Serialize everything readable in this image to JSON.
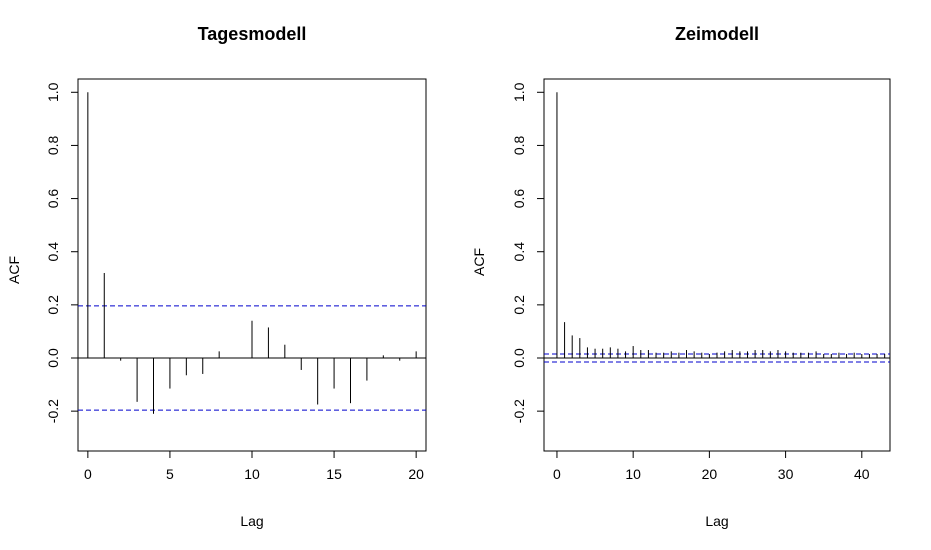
{
  "chart_data": [
    {
      "type": "bar",
      "title": "Tagesmodell",
      "xlabel": "Lag",
      "ylabel": "ACF",
      "xlim": [
        -0.6,
        20.6
      ],
      "ylim": [
        -0.35,
        1.05
      ],
      "xticks": [
        0,
        5,
        10,
        15,
        20
      ],
      "xtick_labels": [
        "0",
        "5",
        "10",
        "15",
        "20"
      ],
      "yticks": [
        -0.2,
        0.0,
        0.2,
        0.4,
        0.6,
        0.8,
        1.0
      ],
      "ytick_labels": [
        "-0.2",
        "0.0",
        "0.2",
        "0.4",
        "0.6",
        "0.8",
        "1.0"
      ],
      "confidence_band": 0.196,
      "ci_color": "#0000cc",
      "lags": [
        0,
        1,
        2,
        3,
        4,
        5,
        6,
        7,
        8,
        9,
        10,
        11,
        12,
        13,
        14,
        15,
        16,
        17,
        18,
        19,
        20
      ],
      "values": [
        1.0,
        0.32,
        -0.01,
        -0.165,
        -0.21,
        -0.115,
        -0.065,
        -0.06,
        0.025,
        0.0,
        0.14,
        0.115,
        0.05,
        -0.045,
        -0.175,
        -0.115,
        -0.17,
        -0.085,
        0.01,
        -0.01,
        0.025
      ]
    },
    {
      "type": "bar",
      "title": "Zeimodell",
      "xlabel": "Lag",
      "ylabel": "ACF",
      "xlim": [
        -1.7,
        43.7
      ],
      "ylim": [
        -0.35,
        1.05
      ],
      "xticks": [
        0,
        10,
        20,
        30,
        40
      ],
      "xtick_labels": [
        "0",
        "10",
        "20",
        "30",
        "40"
      ],
      "yticks": [
        -0.2,
        0.0,
        0.2,
        0.4,
        0.6,
        0.8,
        1.0
      ],
      "ytick_labels": [
        "-0.2",
        "0.0",
        "0.2",
        "0.4",
        "0.6",
        "0.8",
        "1.0"
      ],
      "confidence_band": 0.015,
      "ci_color": "#0000cc",
      "lags": [
        0,
        1,
        2,
        3,
        4,
        5,
        6,
        7,
        8,
        9,
        10,
        11,
        12,
        13,
        14,
        15,
        16,
        17,
        18,
        19,
        20,
        21,
        22,
        23,
        24,
        25,
        26,
        27,
        28,
        29,
        30,
        31,
        32,
        33,
        34,
        35,
        36,
        37,
        38,
        39,
        40,
        41,
        42,
        43
      ],
      "values": [
        1.0,
        0.135,
        0.085,
        0.075,
        0.04,
        0.035,
        0.035,
        0.04,
        0.035,
        0.025,
        0.045,
        0.03,
        0.03,
        0.02,
        0.02,
        0.025,
        0.02,
        0.03,
        0.025,
        0.02,
        0.015,
        0.02,
        0.025,
        0.03,
        0.025,
        0.025,
        0.03,
        0.03,
        0.025,
        0.03,
        0.025,
        0.02,
        0.02,
        0.02,
        0.025,
        0.015,
        0.015,
        0.02,
        0.015,
        0.02,
        0.015,
        0.015,
        0.015,
        0.015
      ]
    }
  ]
}
